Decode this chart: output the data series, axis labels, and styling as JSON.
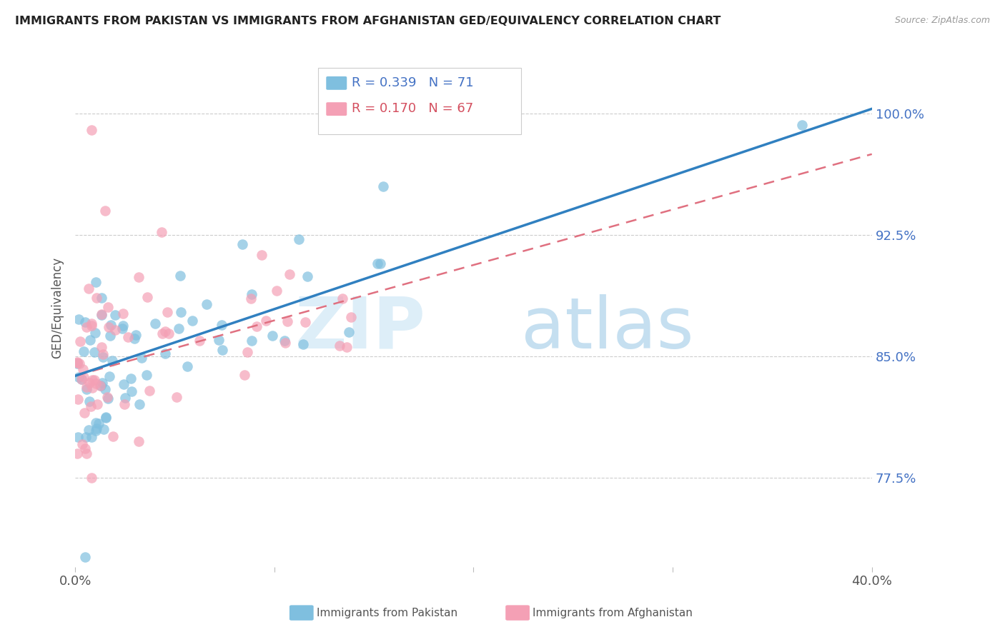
{
  "title": "IMMIGRANTS FROM PAKISTAN VS IMMIGRANTS FROM AFGHANISTAN GED/EQUIVALENCY CORRELATION CHART",
  "source": "Source: ZipAtlas.com",
  "ylabel": "GED/Equivalency",
  "ytick_labels": [
    "100.0%",
    "92.5%",
    "85.0%",
    "77.5%"
  ],
  "ytick_values": [
    1.0,
    0.925,
    0.85,
    0.775
  ],
  "xlim": [
    0.0,
    0.4
  ],
  "ylim": [
    0.72,
    1.04
  ],
  "legend_blue_R": "R = 0.339",
  "legend_blue_N": "N = 71",
  "legend_pink_R": "R = 0.170",
  "legend_pink_N": "N = 67",
  "blue_color": "#7fbfdf",
  "pink_color": "#f4a0b5",
  "line_blue_color": "#3080c0",
  "line_pink_color": "#e07080",
  "blue_line_x0": 0.0,
  "blue_line_x1": 0.4,
  "blue_line_y0": 0.838,
  "blue_line_y1": 1.003,
  "pink_line_x0": 0.0,
  "pink_line_x1": 0.4,
  "pink_line_y0": 0.838,
  "pink_line_y1": 0.975
}
